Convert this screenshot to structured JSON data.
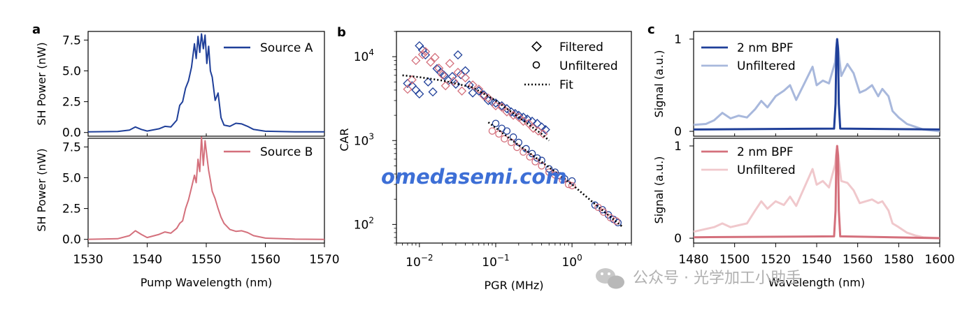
{
  "panel_labels": [
    "a",
    "b",
    "c"
  ],
  "watermark": "omedasemi.com",
  "wechat_text": "公众号 · 光学加工小助手",
  "colors": {
    "source_a": "#1f3f99",
    "source_b": "#d4707c",
    "a_light": "#a8b8dc",
    "b_light": "#f0c8cc"
  },
  "chart_data": [
    {
      "type": "line",
      "panel": "a",
      "xlabel": "Pump Wavelength (nm)",
      "ylabel": "SH Power (nW)",
      "xlim": [
        1530,
        1570
      ],
      "xticks": [
        "1530",
        "1540",
        "1550",
        "1560",
        "1570"
      ],
      "ylim": [
        -0.3,
        8.2
      ],
      "yticks": [
        "0.0",
        "2.5",
        "5.0",
        "7.5"
      ],
      "series": [
        {
          "name": "Source A",
          "legend": "upper right",
          "x": [
            1530,
            1535,
            1537,
            1538,
            1539,
            1540,
            1542,
            1543,
            1544,
            1545,
            1545.5,
            1546,
            1546.5,
            1547,
            1547.5,
            1548,
            1548.3,
            1548.6,
            1548.9,
            1549.2,
            1549.5,
            1549.8,
            1550.1,
            1550.4,
            1550.7,
            1551,
            1551.5,
            1552,
            1552.5,
            1553,
            1554,
            1555,
            1556,
            1557,
            1558,
            1560,
            1565,
            1570
          ],
          "y": [
            0.05,
            0.08,
            0.2,
            0.45,
            0.25,
            0.12,
            0.3,
            0.5,
            0.45,
            1.0,
            2.2,
            2.5,
            3.6,
            4.2,
            5.3,
            7.2,
            6.0,
            7.8,
            6.5,
            8.0,
            6.8,
            7.9,
            5.6,
            7.0,
            5.0,
            4.5,
            2.6,
            3.2,
            1.2,
            0.6,
            0.5,
            0.75,
            0.7,
            0.5,
            0.25,
            0.1,
            0.05,
            0.05
          ]
        },
        {
          "name": "Source B",
          "legend": "upper right",
          "x": [
            1530,
            1535,
            1537,
            1538,
            1539,
            1540,
            1542,
            1543,
            1544,
            1545,
            1545.5,
            1546,
            1546.5,
            1547,
            1547.5,
            1548,
            1548.3,
            1548.6,
            1548.9,
            1549.2,
            1549.5,
            1549.8,
            1550.1,
            1550.4,
            1550.7,
            1551,
            1551.5,
            1552,
            1552.5,
            1553,
            1554,
            1555,
            1556,
            1557,
            1558,
            1560,
            1565,
            1570
          ],
          "y": [
            0.0,
            0.05,
            0.3,
            0.7,
            0.4,
            0.15,
            0.4,
            0.6,
            0.5,
            0.9,
            1.3,
            1.5,
            2.5,
            3.2,
            4.2,
            5.2,
            4.6,
            6.5,
            5.5,
            8.3,
            6.0,
            8.0,
            6.8,
            5.6,
            4.8,
            3.9,
            3.3,
            2.5,
            1.8,
            1.3,
            0.8,
            0.65,
            0.7,
            0.55,
            0.3,
            0.1,
            0.02,
            0.0
          ]
        }
      ]
    },
    {
      "type": "scatter",
      "panel": "b",
      "xlabel": "PGR (MHz)",
      "ylabel": "CAR",
      "xscale": "log",
      "yscale": "log",
      "xlim": [
        0.005,
        6
      ],
      "ylim": [
        60,
        20000
      ],
      "xticks": [
        "10",
        "10",
        "10"
      ],
      "xtick_exp": [
        "−2",
        "−1",
        "0"
      ],
      "yticks": [
        "10",
        "10",
        "10"
      ],
      "ytick_exp": [
        "2",
        "3",
        "4"
      ],
      "legend": [
        "Filtered",
        "Unfiltered",
        "Fit"
      ],
      "series": [
        {
          "name": "Filtered",
          "color": "source_a",
          "marker": "diamond",
          "x": [
            0.007,
            0.008,
            0.009,
            0.01,
            0.01,
            0.011,
            0.012,
            0.013,
            0.015,
            0.017,
            0.019,
            0.021,
            0.024,
            0.027,
            0.03,
            0.032,
            0.035,
            0.04,
            0.045,
            0.05,
            0.06,
            0.07,
            0.08,
            0.09,
            0.1,
            0.12,
            0.14,
            0.16,
            0.18,
            0.2,
            0.23,
            0.26,
            0.3,
            0.35,
            0.4,
            0.45
          ],
          "y": [
            4800,
            4500,
            4000,
            3600,
            13500,
            12000,
            10500,
            5000,
            3800,
            7200,
            6500,
            6000,
            5200,
            5800,
            4700,
            10500,
            6100,
            6800,
            4600,
            3700,
            3900,
            3500,
            3000,
            2900,
            2800,
            2600,
            2400,
            2200,
            2100,
            2000,
            1900,
            1800,
            1700,
            1600,
            1450,
            1350
          ]
        },
        {
          "name": "Filtered (Source B)",
          "color": "source_b",
          "marker": "diamond",
          "x": [
            0.007,
            0.008,
            0.009,
            0.011,
            0.012,
            0.014,
            0.016,
            0.018,
            0.02,
            0.022,
            0.025,
            0.028,
            0.032,
            0.036,
            0.04,
            0.05,
            0.06,
            0.07,
            0.08,
            0.1,
            0.12,
            0.14,
            0.17,
            0.2,
            0.23,
            0.27,
            0.31,
            0.36,
            0.42
          ],
          "y": [
            4100,
            5300,
            9000,
            10600,
            11500,
            8600,
            9800,
            7300,
            6100,
            4500,
            8300,
            5100,
            6500,
            3900,
            5600,
            4600,
            4100,
            3400,
            3200,
            2600,
            2500,
            2200,
            2000,
            1900,
            1700,
            1600,
            1400,
            1300,
            1200
          ]
        },
        {
          "name": "Unfiltered",
          "color": "source_a",
          "marker": "circle",
          "x": [
            0.1,
            0.12,
            0.14,
            0.17,
            0.2,
            0.25,
            0.3,
            0.35,
            0.4,
            0.5,
            0.6,
            0.7,
            0.8,
            1.0,
            2.0,
            2.5,
            3.0,
            3.5,
            4.0
          ],
          "y": [
            1600,
            1400,
            1300,
            1100,
            950,
            800,
            700,
            620,
            580,
            460,
            420,
            380,
            350,
            330,
            170,
            150,
            130,
            115,
            105
          ]
        },
        {
          "name": "Unfiltered (Source B)",
          "color": "source_b",
          "marker": "circle",
          "x": [
            0.09,
            0.11,
            0.13,
            0.16,
            0.19,
            0.23,
            0.28,
            0.33,
            0.4,
            0.5,
            0.6,
            0.75,
            0.9,
            1.0,
            2.2,
            2.6,
            3.2,
            3.8
          ],
          "y": [
            1300,
            1200,
            1050,
            950,
            830,
            730,
            640,
            560,
            500,
            420,
            390,
            340,
            300,
            290,
            160,
            140,
            120,
            110
          ]
        },
        {
          "name": "Fit",
          "style": "dotted",
          "x": [
            0.006,
            0.01,
            0.02,
            0.05,
            0.1,
            0.2,
            0.3,
            0.4,
            0.5
          ],
          "y": [
            6000,
            5700,
            5200,
            4300,
            3000,
            1900,
            1450,
            1200,
            1000
          ]
        },
        {
          "name": "Fit (Unfiltered)",
          "style": "dotted",
          "x": [
            0.08,
            0.2,
            0.5,
            1.0,
            2.0,
            4.5
          ],
          "y": [
            1650,
            880,
            480,
            300,
            175,
            95
          ]
        }
      ]
    },
    {
      "type": "line",
      "panel": "c",
      "xlabel": "Wavelength (nm)",
      "ylabel": "Signal (a.u.)",
      "xlim": [
        1480,
        1600
      ],
      "xticks": [
        "1480",
        "1500",
        "1520",
        "1540",
        "1560",
        "1580",
        "1600"
      ],
      "ylim": [
        -0.03,
        1.03
      ],
      "yticks": [
        "0",
        "1"
      ],
      "series": [
        {
          "name": "2 nm BPF",
          "x": [
            1480,
            1548.5,
            1549.2,
            1549.6,
            1550,
            1550.4,
            1550.8,
            1551.5,
            1600
          ],
          "y": [
            0.02,
            0.03,
            0.3,
            0.9,
            1.0,
            0.9,
            0.3,
            0.03,
            0.02
          ]
        },
        {
          "name": "Unfiltered",
          "x": [
            1480,
            1486,
            1490,
            1494,
            1498,
            1502,
            1506,
            1510,
            1513,
            1516,
            1520,
            1524,
            1527,
            1530,
            1534,
            1538,
            1540,
            1543,
            1546,
            1549,
            1550,
            1552,
            1555,
            1558,
            1561,
            1564,
            1567,
            1570,
            1572,
            1575,
            1577,
            1580,
            1584,
            1588,
            1592,
            1600
          ],
          "y": [
            0.07,
            0.08,
            0.12,
            0.2,
            0.14,
            0.17,
            0.15,
            0.24,
            0.33,
            0.26,
            0.38,
            0.44,
            0.5,
            0.34,
            0.52,
            0.7,
            0.5,
            0.55,
            0.52,
            0.75,
            1.0,
            0.6,
            0.73,
            0.63,
            0.42,
            0.45,
            0.5,
            0.38,
            0.46,
            0.38,
            0.22,
            0.15,
            0.08,
            0.05,
            0.02,
            0.0
          ]
        },
        {
          "name": "2 nm BPF (Source B)",
          "x": [
            1480,
            1548.5,
            1549.2,
            1549.6,
            1550,
            1550.4,
            1550.8,
            1551.5,
            1600
          ],
          "y": [
            0.01,
            0.02,
            0.3,
            0.9,
            1.0,
            0.9,
            0.3,
            0.02,
            0.0
          ]
        },
        {
          "name": "Unfiltered (Source B)",
          "x": [
            1480,
            1486,
            1490,
            1494,
            1498,
            1502,
            1506,
            1510,
            1513,
            1516,
            1520,
            1524,
            1527,
            1530,
            1534,
            1538,
            1540,
            1543,
            1546,
            1549,
            1550,
            1552,
            1555,
            1558,
            1561,
            1564,
            1567,
            1570,
            1572,
            1575,
            1577,
            1580,
            1584,
            1588,
            1592,
            1600
          ],
          "y": [
            0.07,
            0.1,
            0.12,
            0.16,
            0.12,
            0.14,
            0.16,
            0.3,
            0.4,
            0.32,
            0.4,
            0.36,
            0.45,
            0.35,
            0.55,
            0.75,
            0.58,
            0.62,
            0.55,
            0.8,
            1.0,
            0.62,
            0.6,
            0.52,
            0.38,
            0.4,
            0.42,
            0.38,
            0.4,
            0.3,
            0.16,
            0.12,
            0.06,
            0.03,
            0.01,
            0.0
          ]
        }
      ]
    }
  ]
}
